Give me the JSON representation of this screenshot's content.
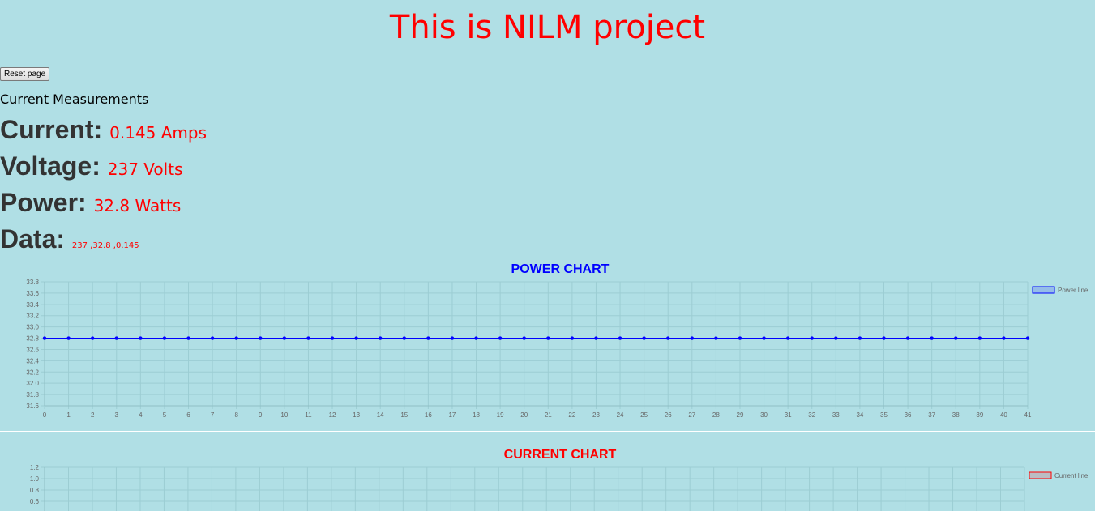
{
  "page": {
    "title": "This is NILM project",
    "reset_label": "Reset page",
    "section_label": "Current Measurements"
  },
  "measurements": [
    {
      "label": "Current:",
      "value": "0.145 Amps"
    },
    {
      "label": "Voltage:",
      "value": "237 Volts"
    },
    {
      "label": "Power:",
      "value": "32.8 Watts"
    },
    {
      "label": "Data:",
      "value": "237 ,32.8 ,0.145"
    }
  ],
  "colors": {
    "background": "#b0dfe5",
    "title": "#ff0000",
    "power_series": "#0000ff",
    "current_series": "#ff0000"
  },
  "chart_data": [
    {
      "type": "line",
      "title": "POWER CHART",
      "series": [
        {
          "name": "Power line",
          "x": [
            0,
            1,
            2,
            3,
            4,
            5,
            6,
            7,
            8,
            9,
            10,
            11,
            12,
            13,
            14,
            15,
            16,
            17,
            18,
            19,
            20,
            21,
            22,
            23,
            24,
            25,
            26,
            27,
            28,
            29,
            30,
            31,
            32,
            33,
            34,
            35,
            36,
            37,
            38,
            39,
            40,
            41
          ],
          "values": [
            32.8,
            32.8,
            32.8,
            32.8,
            32.8,
            32.8,
            32.8,
            32.8,
            32.8,
            32.8,
            32.8,
            32.8,
            32.8,
            32.8,
            32.8,
            32.8,
            32.8,
            32.8,
            32.8,
            32.8,
            32.8,
            32.8,
            32.8,
            32.8,
            32.8,
            32.8,
            32.8,
            32.8,
            32.8,
            32.8,
            32.8,
            32.8,
            32.8,
            32.8,
            32.8,
            32.8,
            32.8,
            32.8,
            32.8,
            32.8,
            32.8,
            32.8
          ]
        }
      ],
      "xlim": [
        0,
        41
      ],
      "ylim": [
        31.6,
        33.8
      ],
      "yticks": [
        "31.6",
        "31.8",
        "32.0",
        "32.2",
        "32.4",
        "32.6",
        "32.8",
        "33.0",
        "33.2",
        "33.4",
        "33.6",
        "33.8"
      ],
      "grid": true,
      "legend": "top-right"
    },
    {
      "type": "line",
      "title": "CURRENT CHART",
      "series": [
        {
          "name": "Current line",
          "x": [],
          "values": []
        }
      ],
      "ylim": [
        0,
        1.2
      ],
      "yticks_visible": [
        "1.2",
        "1.0",
        "0.8",
        "0.6"
      ],
      "grid": true,
      "legend": "top-right"
    }
  ]
}
